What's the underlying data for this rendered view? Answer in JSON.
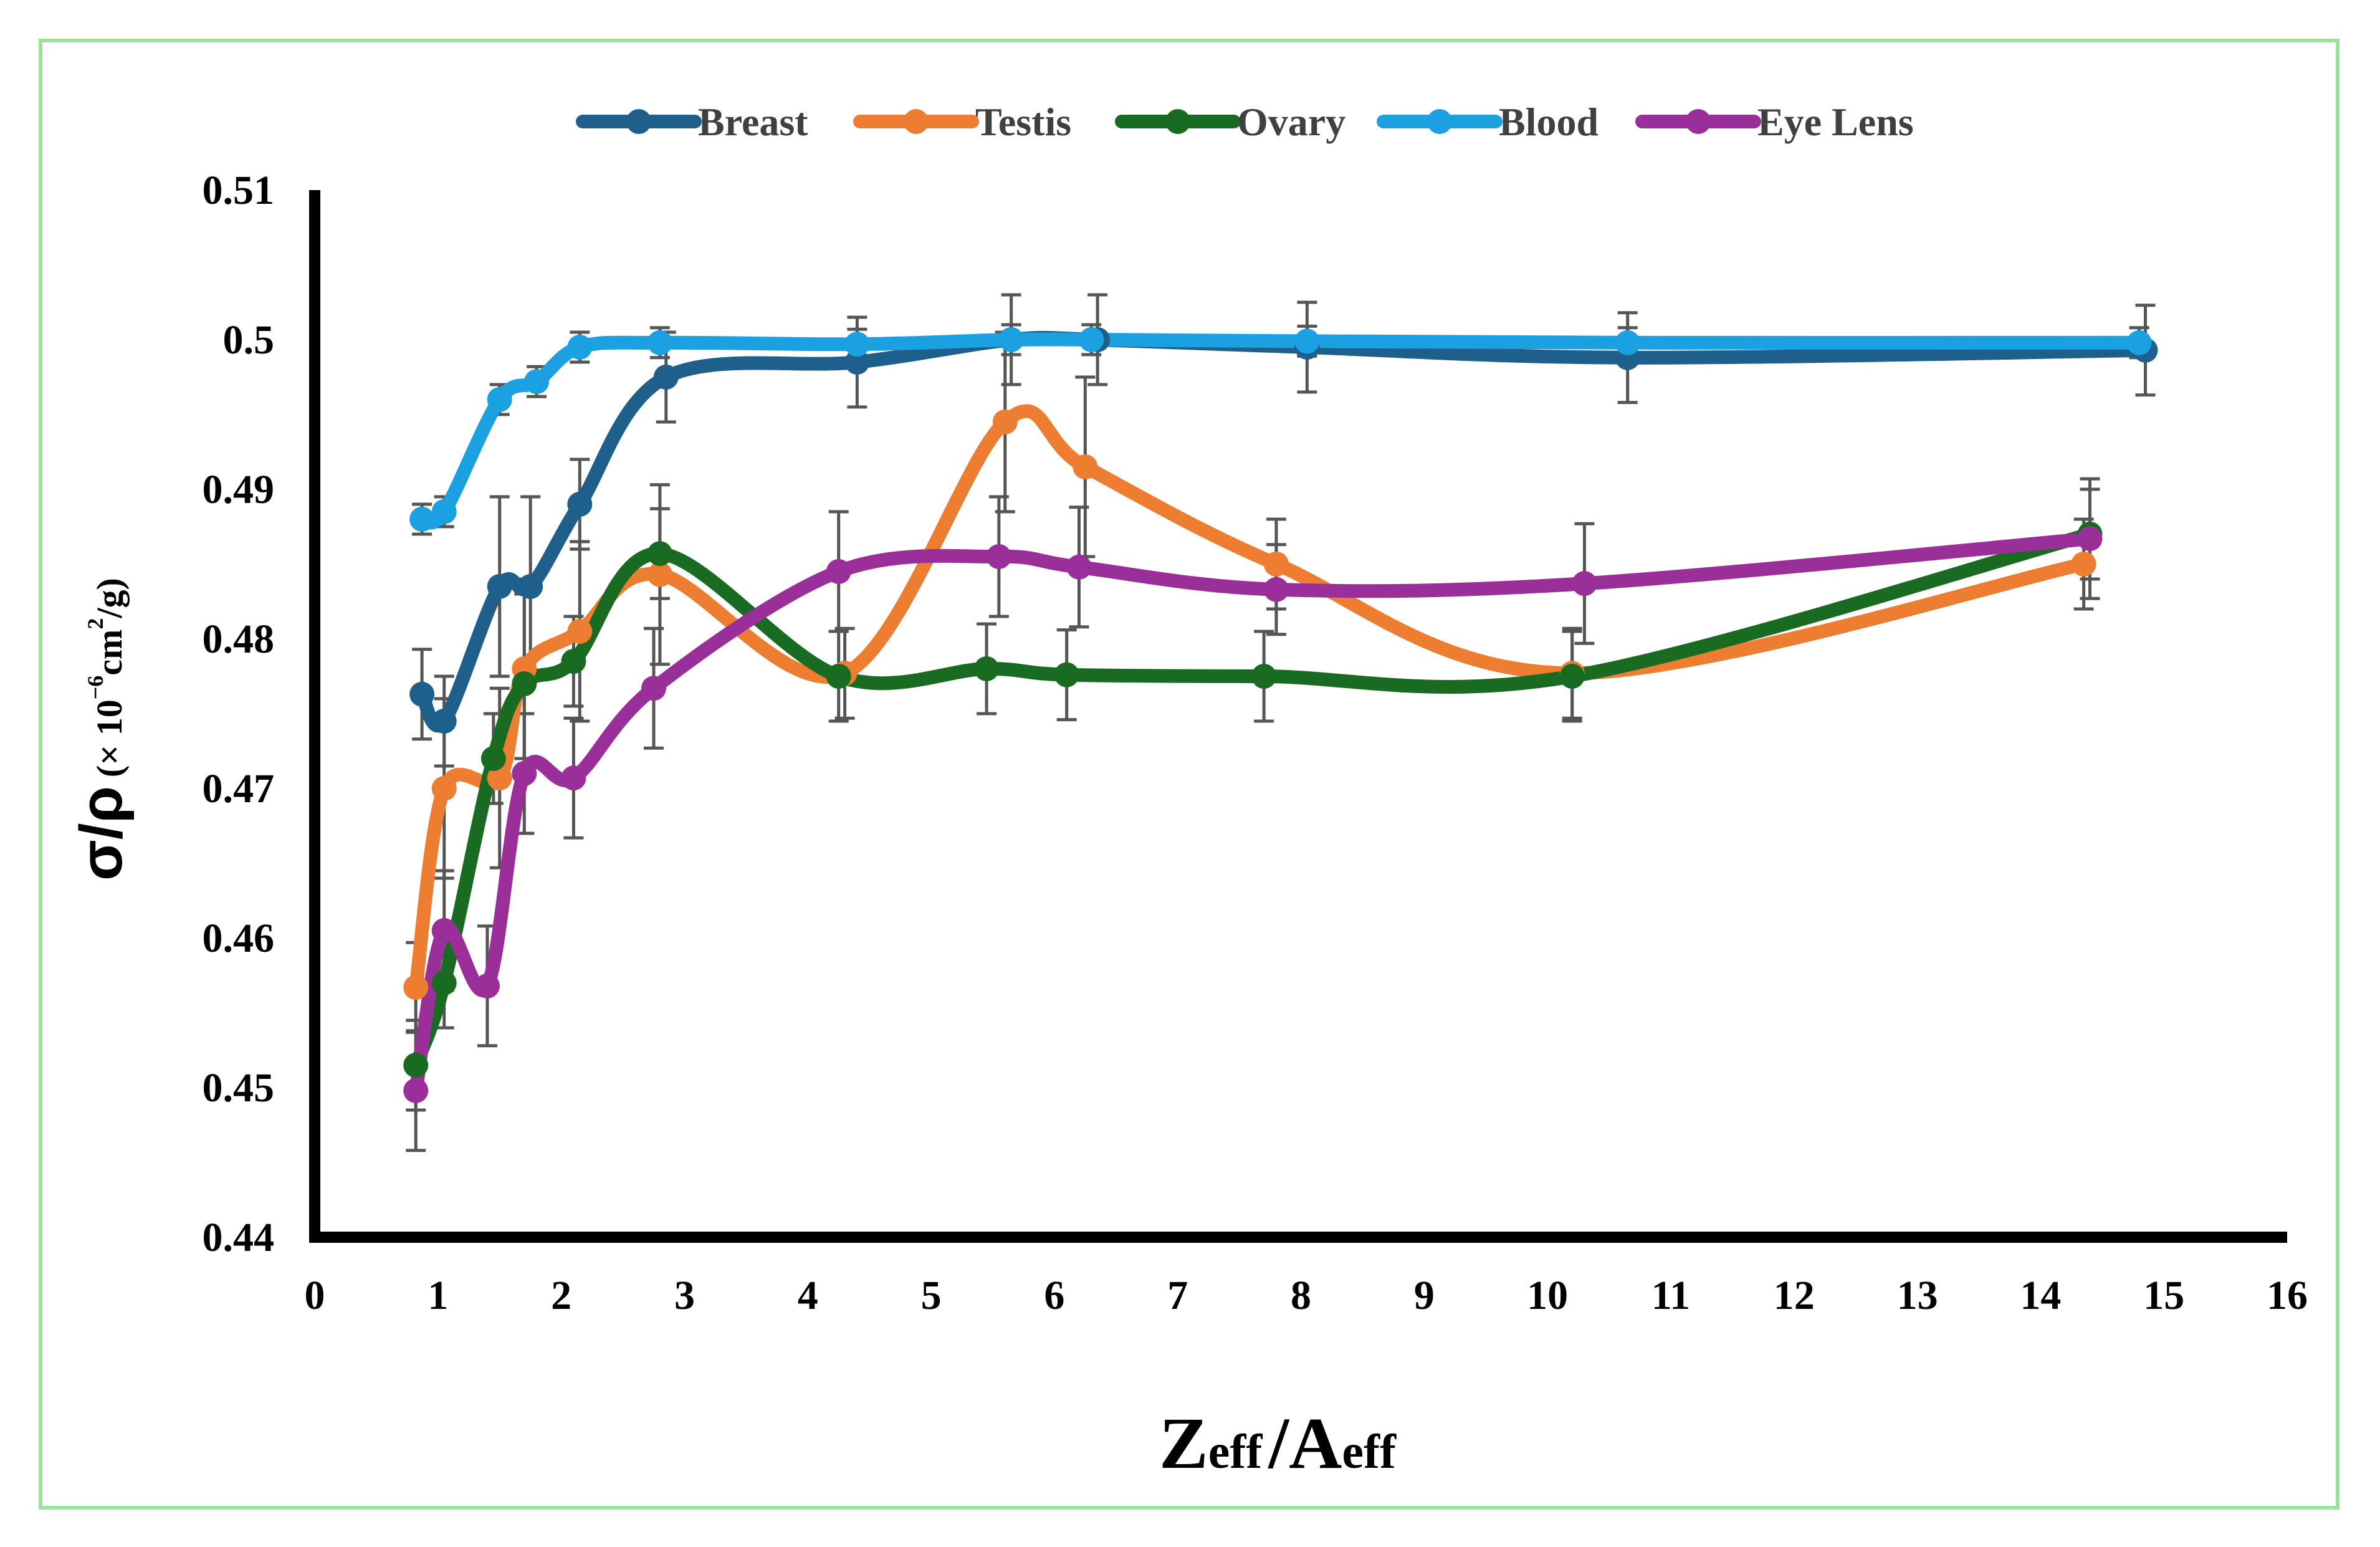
{
  "chart_data": {
    "type": "line",
    "title": "",
    "xlabel": {
      "main": "Z",
      "sub": "eff",
      "sep": "/",
      "main2": "A",
      "sub2": "eff"
    },
    "ylabel": {
      "main": "σ/ρ",
      "unit_prefix": "(× 10",
      "unit_exp": "−6",
      "unit_mid": "cm",
      "unit_exp2": "2",
      "unit_suffix": "/g)"
    },
    "xlim": [
      0,
      16
    ],
    "ylim": [
      0.44,
      0.51
    ],
    "x_ticks": [
      "0",
      "1",
      "2",
      "3",
      "4",
      "5",
      "6",
      "7",
      "8",
      "9",
      "10",
      "11",
      "12",
      "13",
      "14",
      "15",
      "16"
    ],
    "y_ticks": [
      "0.44",
      "0.45",
      "0.46",
      "0.47",
      "0.48",
      "0.49",
      "0.5",
      "0.51"
    ],
    "legend_position": "top",
    "grid": false,
    "series": [
      {
        "name": "Breast",
        "color": "#1f5f8b",
        "points": [
          [
            0.87,
            0.4763
          ],
          [
            1.05,
            0.4745
          ],
          [
            1.5,
            0.4835
          ],
          [
            1.75,
            0.4835
          ],
          [
            2.15,
            0.489
          ],
          [
            2.85,
            0.4975
          ],
          [
            4.4,
            0.4985
          ],
          [
            5.65,
            0.5
          ],
          [
            6.35,
            0.5
          ],
          [
            8.05,
            0.4995
          ],
          [
            10.65,
            0.4988
          ],
          [
            14.85,
            0.4993
          ]
        ],
        "errors": [
          0.003,
          0.003,
          0.006,
          0.006,
          0.003,
          0.003,
          0.003,
          0.003,
          0.003,
          0.003,
          0.003,
          0.003
        ]
      },
      {
        "name": "Testis",
        "color": "#ed7d31",
        "points": [
          [
            0.82,
            0.4567
          ],
          [
            1.05,
            0.47
          ],
          [
            1.5,
            0.4707
          ],
          [
            1.7,
            0.478
          ],
          [
            2.15,
            0.4805
          ],
          [
            2.8,
            0.4843
          ],
          [
            4.3,
            0.4777
          ],
          [
            5.6,
            0.4945
          ],
          [
            6.25,
            0.4915
          ],
          [
            7.8,
            0.485
          ],
          [
            10.2,
            0.4777
          ],
          [
            14.35,
            0.485
          ]
        ],
        "errors": [
          0.003,
          0.006,
          0.006,
          0.006,
          0.006,
          0.006,
          0.003,
          0.006,
          0.006,
          0.003,
          0.003,
          0.003
        ]
      },
      {
        "name": "Ovary",
        "color": "#1a6b22",
        "points": [
          [
            0.82,
            0.4515
          ],
          [
            1.05,
            0.457
          ],
          [
            1.45,
            0.472
          ],
          [
            1.7,
            0.477
          ],
          [
            2.1,
            0.4785
          ],
          [
            2.8,
            0.4857
          ],
          [
            4.25,
            0.4775
          ],
          [
            5.45,
            0.478
          ],
          [
            6.1,
            0.4776
          ],
          [
            7.7,
            0.4775
          ],
          [
            10.2,
            0.4775
          ],
          [
            14.4,
            0.487
          ]
        ],
        "errors": [
          0.003,
          0.003,
          0.003,
          0.006,
          0.003,
          0.003,
          0.003,
          0.003,
          0.003,
          0.003,
          0.003,
          0.003
        ]
      },
      {
        "name": "Blood",
        "color": "#1ba1e2",
        "points": [
          [
            0.87,
            0.488
          ],
          [
            1.05,
            0.4885
          ],
          [
            1.5,
            0.496
          ],
          [
            1.8,
            0.4972
          ],
          [
            2.15,
            0.4995
          ],
          [
            2.8,
            0.4998
          ],
          [
            4.4,
            0.4997
          ],
          [
            5.65,
            0.5
          ],
          [
            6.3,
            0.5
          ],
          [
            8.05,
            0.4999
          ],
          [
            10.65,
            0.4998
          ],
          [
            14.8,
            0.4998
          ]
        ],
        "errors": [
          0.001,
          0.001,
          0.001,
          0.001,
          0.001,
          0.001,
          0.001,
          0.001,
          0.001,
          0.001,
          0.001,
          0.001
        ]
      },
      {
        "name": "Eye Lens",
        "color": "#9b2f99",
        "points": [
          [
            0.82,
            0.4498
          ],
          [
            1.05,
            0.4605
          ],
          [
            1.4,
            0.4568
          ],
          [
            1.7,
            0.471
          ],
          [
            2.1,
            0.4707
          ],
          [
            2.75,
            0.4767
          ],
          [
            4.25,
            0.4845
          ],
          [
            5.55,
            0.4855
          ],
          [
            6.2,
            0.4848
          ],
          [
            7.8,
            0.4833
          ],
          [
            10.3,
            0.4837
          ],
          [
            14.4,
            0.4867
          ]
        ],
        "errors": [
          0.004,
          0.004,
          0.004,
          0.004,
          0.004,
          0.004,
          0.004,
          0.004,
          0.004,
          0.003,
          0.004,
          0.004
        ]
      }
    ]
  }
}
